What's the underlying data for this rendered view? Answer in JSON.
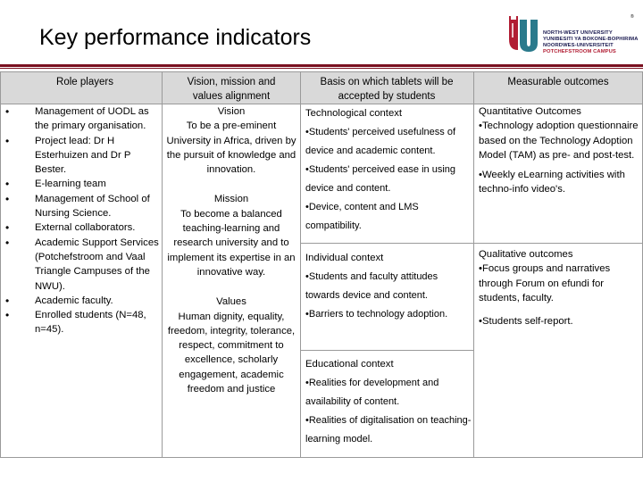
{
  "header": {
    "title": "Key performance indicators",
    "logo": {
      "lines": [
        "NORTH-WEST UNIVERSITY",
        "YUNIBESITI YA BOKONE-BOPHIRIMA",
        "NOORDWES-UNIVERSITEIT"
      ],
      "campus": "POTCHEFSTROOM CAMPUS",
      "reg_mark": "®",
      "colors": {
        "red": "#b11d33",
        "navy": "#1a1a50",
        "teal": "#2a7a8c"
      }
    }
  },
  "table": {
    "headers": {
      "role_players": "Role players",
      "vision_l1": "Vision, mission and",
      "vision_l2": "values alignment",
      "basis_l1": "Basis on which tablets will be",
      "basis_l2": "accepted by students",
      "outcomes": "Measurable outcomes"
    },
    "role_players": [
      "Management of UODL as the primary organisation.",
      "Project lead: Dr H Esterhuizen and Dr P Bester.",
      "E-learning team",
      "Management of School of Nursing Science.",
      "External collaborators.",
      "Academic Support Services (Potchefstroom and Vaal Triangle Campuses of the NWU).",
      "Academic faculty.",
      "Enrolled students (N=48, n=45)."
    ],
    "alignment": {
      "vision_title": "Vision",
      "vision_text": "To be a pre-eminent University in Africa, driven by the pursuit of knowledge and innovation.",
      "mission_title": "Mission",
      "mission_text": "To become a balanced teaching-learning and research university and to implement its expertise in an innovative way.",
      "values_title": "Values",
      "values_text": "Human dignity, equality, freedom, integrity, tolerance, respect, commitment to excellence, scholarly engagement, academic freedom and justice"
    },
    "basis": {
      "tech_title": "Technological context",
      "tech_items": [
        "•Students' perceived usefulness of device and academic content.",
        "•Students' perceived ease in using device and content.",
        "•Device, content and LMS compatibility."
      ],
      "indiv_title": "Individual context",
      "indiv_items": [
        "•Students and faculty attitudes towards device and content.",
        "•Barriers to technology adoption."
      ],
      "edu_title": "Educational context",
      "edu_items": [
        "•Realities for development and availability of content.",
        "•Realities of digitalisation on teaching-learning model."
      ]
    },
    "outcomes": {
      "quant_title": "Quantitative Outcomes",
      "quant_items": [
        "•Technology adoption questionnaire based on the Technology Adoption Model (TAM) as pre- and post-test.",
        "•Weekly eLearning activities with techno-info video's."
      ],
      "qual_title": "Qualitative outcomes",
      "qual_items": [
        "•Focus groups and narratives through Forum on efundi for students, faculty.",
        "•Students self-report."
      ]
    }
  }
}
